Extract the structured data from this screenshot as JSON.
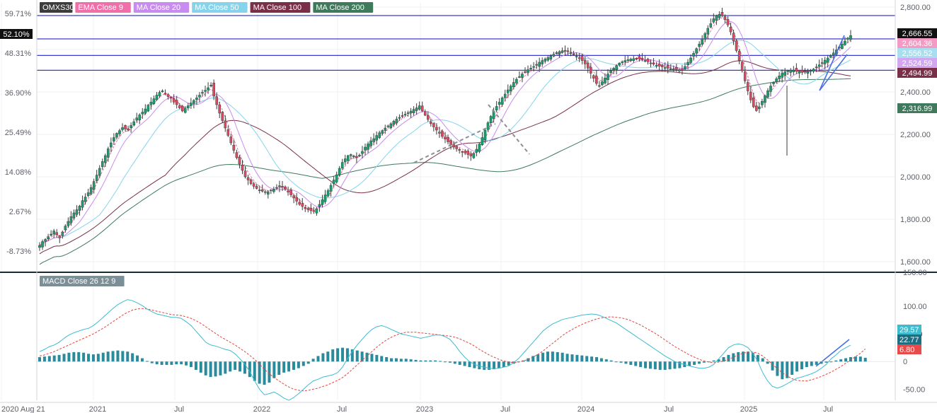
{
  "chart_data": [
    {
      "type": "candlestick",
      "title": "OMXS30",
      "legend": [
        {
          "name": "OMXS30",
          "color": "#3c3c3c"
        },
        {
          "name": "EMA Close 9",
          "color": "#f06fa8"
        },
        {
          "name": "MA Close 20",
          "color": "#c98bf0"
        },
        {
          "name": "MA Close 50",
          "color": "#86d4ec"
        },
        {
          "name": "MA Close 100",
          "color": "#7a2f48"
        },
        {
          "name": "MA Close 200",
          "color": "#3e7a5b"
        }
      ],
      "x_ticks": [
        "2020 Aug 21",
        "2021",
        "Jul",
        "2022",
        "Jul",
        "2023",
        "Jul",
        "2024",
        "Jul",
        "2025",
        "Jul"
      ],
      "y_ticks": [
        "2,800.00",
        "2,600.00",
        "2,400.00",
        "2,200.00",
        "2,000.00",
        "1,800.00",
        "1,600.00"
      ],
      "y_range": [
        1560,
        2820
      ],
      "pct_ticks": [
        "59.71%",
        "48.31%",
        "36.90%",
        "25.49%",
        "14.08%",
        "2.67%",
        "-8.73%"
      ],
      "pct_current": "52.10%",
      "horizontal_levels": [
        2760,
        2650,
        2572,
        2502
      ],
      "series": [
        {
          "name": "OMXS30",
          "close": [
            1677,
            1695,
            1705,
            1718,
            1730,
            1745,
            1728,
            1712,
            1740,
            1768,
            1790,
            1812,
            1830,
            1845,
            1862,
            1888,
            1905,
            1925,
            1950,
            1978,
            2008,
            2040,
            2072,
            2100,
            2132,
            2160,
            2185,
            2205,
            2218,
            2232,
            2225,
            2220,
            2242,
            2260,
            2278,
            2292,
            2305,
            2320,
            2338,
            2352,
            2368,
            2385,
            2398,
            2405,
            2390,
            2378,
            2370,
            2352,
            2340,
            2325,
            2310,
            2322,
            2335,
            2348,
            2360,
            2372,
            2385,
            2398,
            2408,
            2420,
            2432,
            2380,
            2340,
            2300,
            2265,
            2230,
            2195,
            2160,
            2125,
            2090,
            2060,
            2030,
            2000,
            1985,
            1968,
            1955,
            1945,
            1938,
            1932,
            1928,
            1930,
            1935,
            1942,
            1950,
            1958,
            1955,
            1942,
            1928,
            1915,
            1900,
            1885,
            1870,
            1860,
            1850,
            1845,
            1840,
            1838,
            1850,
            1870,
            1892,
            1915,
            1935,
            1960,
            1985,
            2010,
            2040,
            2068,
            2085,
            2100,
            2105,
            2098,
            2090,
            2102,
            2120,
            2140,
            2155,
            2170,
            2180,
            2195,
            2208,
            2218,
            2230,
            2240,
            2250,
            2262,
            2272,
            2280,
            2288,
            2295,
            2302,
            2310,
            2318,
            2325,
            2335,
            2310,
            2290,
            2270,
            2250,
            2235,
            2220,
            2205,
            2190,
            2178,
            2165,
            2150,
            2140,
            2132,
            2125,
            2118,
            2112,
            2105,
            2098,
            2110,
            2130,
            2155,
            2185,
            2220,
            2255,
            2285,
            2310,
            2332,
            2352,
            2372,
            2390,
            2410,
            2428,
            2445,
            2460,
            2472,
            2485,
            2495,
            2505,
            2512,
            2520,
            2530,
            2540,
            2548,
            2555,
            2562,
            2570,
            2578,
            2585,
            2590,
            2594,
            2596,
            2592,
            2585,
            2576,
            2568,
            2560,
            2548,
            2532,
            2512,
            2488,
            2464,
            2440,
            2430,
            2448,
            2466,
            2484,
            2500,
            2512,
            2524,
            2536,
            2542,
            2548,
            2552,
            2555,
            2557,
            2558,
            2556,
            2553,
            2548,
            2543,
            2537,
            2531,
            2526,
            2522,
            2518,
            2515,
            2512,
            2510,
            2508,
            2506,
            2504,
            2502,
            2520,
            2540,
            2560,
            2582,
            2604,
            2626,
            2650,
            2675,
            2700,
            2722,
            2745,
            2760,
            2766,
            2759,
            2741,
            2716,
            2683,
            2640,
            2595,
            2548,
            2500,
            2452,
            2405,
            2362,
            2330,
            2312,
            2330,
            2356,
            2382,
            2406,
            2428,
            2446,
            2462,
            2476,
            2488,
            2495,
            2500,
            2503,
            2502,
            2498,
            2494,
            2492,
            2493,
            2496,
            2501,
            2508,
            2518,
            2528,
            2538,
            2550,
            2560,
            2572,
            2584,
            2598,
            2612,
            2626,
            2640,
            2654,
            2666
          ]
        },
        {
          "name": "EMA Close 9",
          "last_value": "2,604.36"
        },
        {
          "name": "MA Close 20",
          "last_value": "2,524.59"
        },
        {
          "name": "MA Close 50",
          "last_value": "2,556.52"
        },
        {
          "name": "MA Close 100",
          "last_value": "2,494.99"
        },
        {
          "name": "MA Close 200",
          "last_value": "2,316.99"
        }
      ],
      "current_price": "2,666.55"
    },
    {
      "type": "macd",
      "title": "MACD Close 26 12 9",
      "y_ticks": [
        "150.00",
        "100.00",
        "50.00",
        "0",
        "-50.00"
      ],
      "y_range": [
        -70,
        155
      ],
      "values": {
        "macd": "29.57",
        "signal": "22.77",
        "histogram": "6.80"
      },
      "macd_line": [
        18,
        22,
        27,
        30,
        35,
        42,
        48,
        52,
        55,
        58,
        60,
        65,
        72,
        80,
        88,
        96,
        103,
        108,
        112,
        110,
        106,
        101,
        95,
        90,
        86,
        84,
        82,
        80,
        80,
        78,
        72,
        65,
        55,
        45,
        35,
        30,
        28,
        25,
        22,
        20,
        14,
        5,
        -5,
        -18,
        -35,
        -50,
        -60,
        -58,
        -55,
        -60,
        -66,
        -70,
        -65,
        -58,
        -50,
        -42,
        -35,
        -32,
        -28,
        -26,
        -24,
        -20,
        -10,
        5,
        18,
        30,
        40,
        50,
        58,
        63,
        65,
        62,
        58,
        54,
        50,
        48,
        46,
        44,
        42,
        44,
        46,
        48,
        48,
        45,
        40,
        30,
        18,
        8,
        0,
        -5,
        -8,
        -10,
        -12,
        -13,
        -12,
        -10,
        -8,
        -2,
        5,
        15,
        25,
        35,
        45,
        55,
        62,
        68,
        72,
        76,
        78,
        80,
        82,
        84,
        85,
        86,
        85,
        82,
        78,
        74,
        70,
        64,
        58,
        52,
        46,
        40,
        34,
        28,
        22,
        16,
        10,
        5,
        0,
        -3,
        -5,
        -8,
        -10,
        -12,
        -12,
        -10,
        -5,
        5,
        15,
        25,
        30,
        32,
        30,
        25,
        15,
        0,
        -20,
        -35,
        -45,
        -48,
        -45,
        -40,
        -35,
        -30,
        -28,
        -25,
        -22,
        -18,
        -12,
        -5,
        5,
        12,
        20,
        25,
        29.57
      ],
      "signal_line": [
        10,
        12,
        15,
        18,
        22,
        26,
        30,
        34,
        38,
        42,
        46,
        50,
        55,
        60,
        66,
        72,
        78,
        84,
        89,
        93,
        95,
        96,
        95,
        93,
        91,
        89,
        87,
        85,
        84,
        83,
        81,
        78,
        74,
        69,
        63,
        57,
        51,
        45,
        40,
        35,
        30,
        24,
        18,
        11,
        4,
        -5,
        -14,
        -22,
        -29,
        -35,
        -41,
        -46,
        -50,
        -52,
        -53,
        -52,
        -50,
        -48,
        -45,
        -42,
        -38,
        -34,
        -29,
        -22,
        -14,
        -6,
        2,
        10,
        18,
        26,
        33,
        39,
        44,
        48,
        51,
        53,
        53,
        53,
        52,
        51,
        50,
        49,
        48,
        47,
        46,
        44,
        41,
        37,
        33,
        28,
        22,
        17,
        12,
        8,
        4,
        1,
        -1,
        -2,
        -1,
        1,
        4,
        8,
        13,
        19,
        26,
        33,
        40,
        47,
        53,
        58,
        63,
        67,
        71,
        74,
        77,
        79,
        80,
        81,
        80,
        79,
        77,
        74,
        70,
        66,
        61,
        56,
        51,
        45,
        39,
        33,
        27,
        22,
        17,
        12,
        8,
        4,
        1,
        -1,
        -2,
        -1,
        1,
        4,
        8,
        12,
        15,
        17,
        17,
        15,
        10,
        3,
        -5,
        -13,
        -20,
        -26,
        -31,
        -34,
        -35,
        -35,
        -33,
        -30,
        -27,
        -23,
        -19,
        -14,
        -9,
        -3,
        3,
        9,
        15,
        22.77
      ],
      "histogram": [
        8,
        9,
        10,
        11,
        12,
        14,
        16,
        17,
        17,
        16,
        14,
        13,
        14,
        16,
        18,
        19,
        20,
        19,
        18,
        15,
        11,
        6,
        1,
        -3,
        -5,
        -6,
        -6,
        -6,
        -5,
        -5,
        -7,
        -10,
        -15,
        -20,
        -25,
        -28,
        -27,
        -25,
        -22,
        -18,
        -15,
        -18,
        -22,
        -28,
        -35,
        -40,
        -42,
        -38,
        -30,
        -24,
        -20,
        -18,
        -15,
        -12,
        -8,
        -4,
        5,
        10,
        15,
        18,
        22,
        24,
        25,
        24,
        22,
        20,
        18,
        16,
        14,
        12,
        10,
        8,
        6,
        6,
        5,
        5,
        4,
        3,
        2,
        2,
        2,
        2,
        1,
        0,
        -2,
        -4,
        -6,
        -8,
        -10,
        -12,
        -14,
        -15,
        -15,
        -14,
        -12,
        -10,
        -7,
        -4,
        -1,
        2,
        6,
        10,
        13,
        16,
        18,
        18,
        17,
        16,
        14,
        13,
        12,
        11,
        10,
        9,
        8,
        6,
        4,
        2,
        0,
        -2,
        -4,
        -6,
        -8,
        -10,
        -12,
        -13,
        -14,
        -15,
        -15,
        -14,
        -13,
        -12,
        -10,
        -8,
        -6,
        -4,
        -2,
        0,
        2,
        4,
        8,
        12,
        15,
        17,
        18,
        18,
        16,
        12,
        6,
        -4,
        -16,
        -26,
        -32,
        -30,
        -24,
        -18,
        -14,
        -10,
        -8,
        -6,
        -4,
        -2,
        0,
        2,
        4,
        6,
        8,
        9,
        9,
        6.8
      ]
    }
  ]
}
